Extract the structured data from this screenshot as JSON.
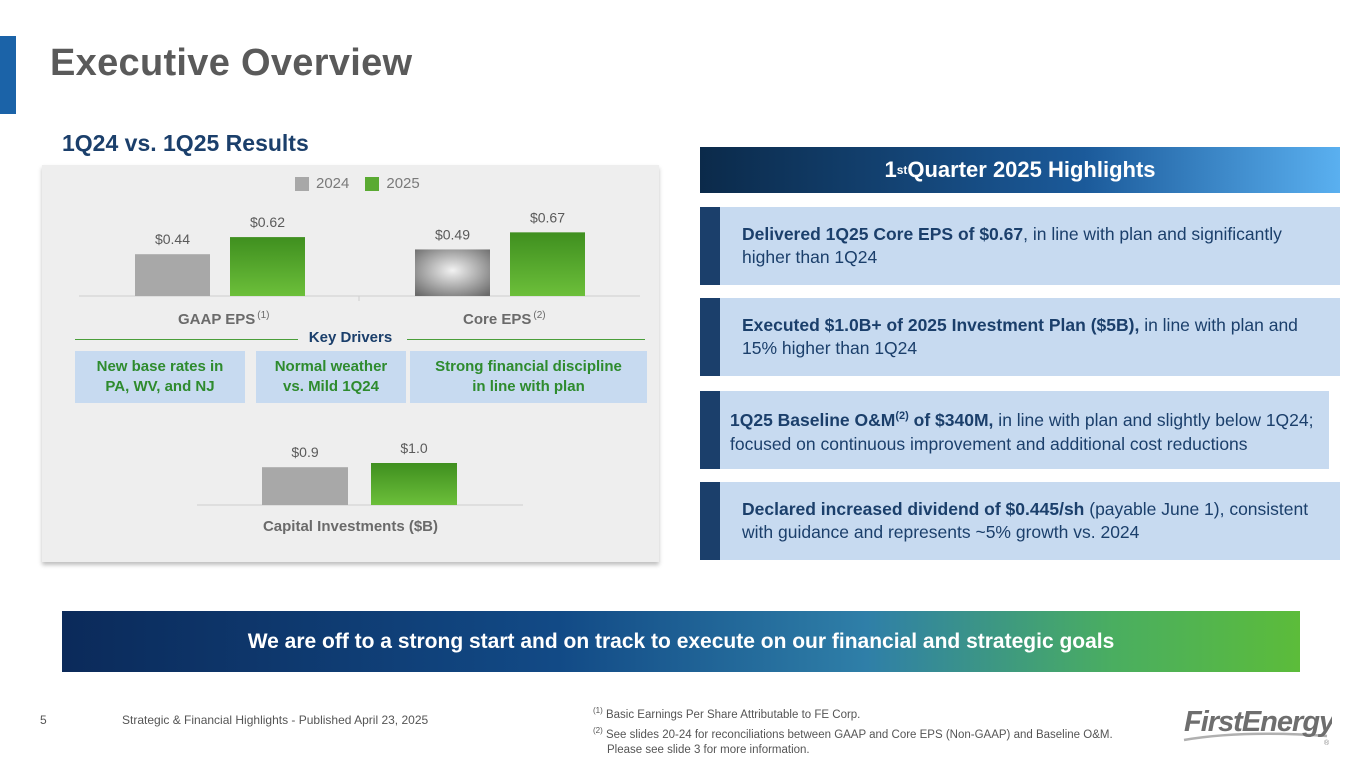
{
  "page": {
    "title": "Executive Overview",
    "section_title": "1Q24 vs. 1Q25 Results",
    "page_number": "5",
    "footer": "Strategic & Financial Highlights - Published April 23, 2025"
  },
  "colors": {
    "accent_blue": "#1b63a8",
    "navy": "#1b3f6b",
    "bar_2024": "#a8a8a8",
    "bar_2025": "#5aaa32",
    "light_blue_box": "#c7daf0",
    "green_text": "#2e8b2e"
  },
  "chart_data": [
    {
      "type": "bar",
      "legend": [
        "2024",
        "2025"
      ],
      "categories": [
        "GAAP EPS",
        "Core EPS"
      ],
      "category_footnotes": [
        "(1)",
        "(2)"
      ],
      "series": [
        {
          "name": "2024",
          "values": [
            0.44,
            0.49
          ],
          "labels": [
            "$0.44",
            "$0.49"
          ]
        },
        {
          "name": "2025",
          "values": [
            0.62,
            0.67
          ],
          "labels": [
            "$0.62",
            "$0.67"
          ]
        }
      ],
      "legend_placement": "top-center",
      "grid": false
    },
    {
      "type": "bar",
      "categories": [
        "Capital Investments ($B)"
      ],
      "series": [
        {
          "name": "2024",
          "values": [
            0.9
          ],
          "labels": [
            "$0.9"
          ]
        },
        {
          "name": "2025",
          "values": [
            1.0
          ],
          "labels": [
            "$1.0"
          ]
        }
      ],
      "grid": false
    }
  ],
  "key_drivers": {
    "title": "Key Drivers",
    "items": [
      {
        "line1": "New base rates in",
        "line2": "PA, WV, and NJ"
      },
      {
        "line1": "Normal weather",
        "line2": "vs. Mild 1Q24"
      },
      {
        "line1": "Strong financial discipline",
        "line2": "in line with plan"
      }
    ]
  },
  "highlights": {
    "header_main": "1",
    "header_sup": "st",
    "header_rest": " Quarter 2025 Highlights",
    "items": [
      {
        "bold": "Delivered 1Q25 Core EPS of $0.67",
        "rest": ", in line with plan and significantly higher than 1Q24"
      },
      {
        "bold": "Executed $1.0B+ of 2025 Investment Plan ($5B),",
        "rest": " in line with plan and 15% higher than 1Q24"
      },
      {
        "bold_a": "1Q25 Baseline O&M",
        "sup": "(2)",
        "bold_b": " of $340M,",
        "rest": " in line with plan and slightly below 1Q24; focused on continuous improvement and additional cost reductions"
      },
      {
        "bold": "Declared increased dividend of $0.445/sh",
        "rest": " (payable June 1), consistent with guidance and represents ~5% growth vs. 2024"
      }
    ]
  },
  "banner": "We are off to a strong start and on track to execute on our financial and strategic goals",
  "footnotes": [
    {
      "marker": "(1)",
      "text": " Basic Earnings Per Share Attributable to FE Corp."
    },
    {
      "marker": "(2)",
      "text": " See slides 20-24 for reconciliations between GAAP and Core EPS (Non-GAAP) and Baseline O&M."
    },
    {
      "marker": "",
      "text": "Please see slide 3 for more information."
    }
  ],
  "logo": {
    "text": "FirstEnergy",
    "registered": "®"
  }
}
